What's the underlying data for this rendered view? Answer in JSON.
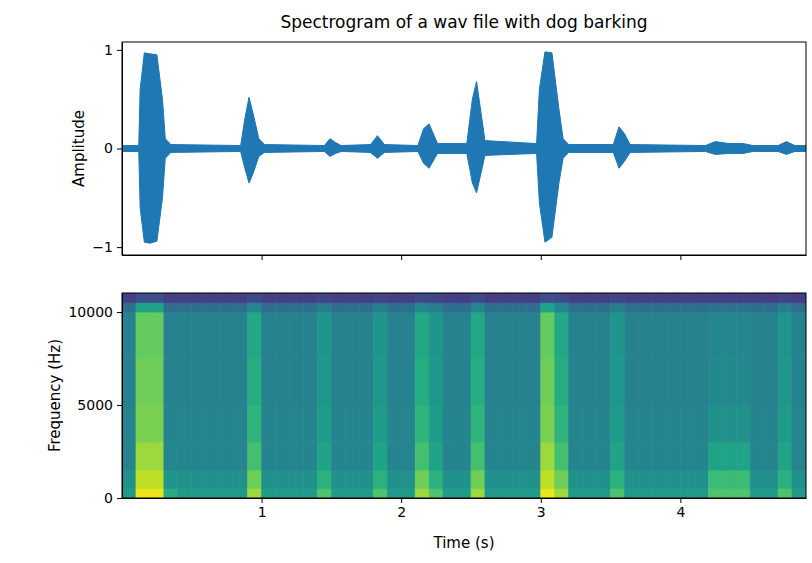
{
  "chart_data": [
    {
      "type": "area",
      "title": "Spectrogram of a wav file with dog barking",
      "y_label": "Amplitude",
      "x": [
        0,
        0.12,
        0.13,
        0.16,
        0.2,
        0.25,
        0.29,
        0.31,
        0.35,
        0.85,
        0.88,
        0.91,
        0.94,
        0.98,
        1.02,
        1.45,
        1.49,
        1.53,
        1.57,
        1.78,
        1.83,
        1.88,
        2.12,
        2.16,
        2.2,
        2.26,
        2.47,
        2.51,
        2.54,
        2.6,
        2.97,
        2.99,
        3.03,
        3.08,
        3.13,
        3.16,
        3.2,
        3.52,
        3.56,
        3.6,
        3.64,
        4.18,
        4.25,
        4.35,
        4.45,
        4.52,
        4.7,
        4.76,
        4.82,
        4.9
      ],
      "series": [
        {
          "color": "#1f77b4",
          "values": [
            0.03,
            0.03,
            0.6,
            0.97,
            0.96,
            0.95,
            0.5,
            0.1,
            0.04,
            0.03,
            0.3,
            0.52,
            0.35,
            0.1,
            0.04,
            0.03,
            0.1,
            0.06,
            0.03,
            0.04,
            0.13,
            0.04,
            0.03,
            0.2,
            0.25,
            0.05,
            0.05,
            0.5,
            0.68,
            0.08,
            0.05,
            0.6,
            0.98,
            0.97,
            0.4,
            0.1,
            0.04,
            0.04,
            0.22,
            0.15,
            0.04,
            0.03,
            0.07,
            0.05,
            0.05,
            0.03,
            0.03,
            0.07,
            0.03,
            0.03
          ]
        },
        {
          "color": "#1f77b4",
          "values": [
            -0.03,
            -0.03,
            -0.6,
            -0.95,
            -0.96,
            -0.94,
            -0.5,
            -0.1,
            -0.04,
            -0.03,
            -0.2,
            -0.35,
            -0.25,
            -0.08,
            -0.04,
            -0.03,
            -0.08,
            -0.05,
            -0.03,
            -0.04,
            -0.1,
            -0.04,
            -0.03,
            -0.15,
            -0.2,
            -0.05,
            -0.05,
            -0.35,
            -0.45,
            -0.07,
            -0.05,
            -0.55,
            -0.95,
            -0.9,
            -0.35,
            -0.1,
            -0.04,
            -0.04,
            -0.2,
            -0.13,
            -0.04,
            -0.03,
            -0.06,
            -0.05,
            -0.05,
            -0.03,
            -0.03,
            -0.06,
            -0.03,
            -0.03
          ]
        }
      ],
      "xlim": [
        0,
        4.9
      ],
      "ylim": [
        -1.08,
        1.08
      ],
      "xticks": [
        1,
        2,
        3,
        4
      ],
      "yticks": [
        {
          "value": -1,
          "label": "−1"
        },
        0,
        1
      ],
      "tick_labels": "y"
    },
    {
      "type": "heatmap",
      "x_label": "Time (s)",
      "y_label": "Frequency (Hz)",
      "color": "viridis",
      "x_edges": [
        0,
        0.1,
        0.2,
        0.3,
        0.4,
        0.5,
        0.6,
        0.7,
        0.8,
        0.9,
        1.0,
        1.1,
        1.2,
        1.3,
        1.4,
        1.5,
        1.6,
        1.7,
        1.8,
        1.9,
        2.0,
        2.1,
        2.2,
        2.3,
        2.4,
        2.5,
        2.6,
        2.7,
        2.8,
        2.9,
        3.0,
        3.1,
        3.2,
        3.3,
        3.4,
        3.5,
        3.6,
        3.7,
        3.8,
        3.9,
        4.0,
        4.1,
        4.2,
        4.3,
        4.4,
        4.5,
        4.6,
        4.7,
        4.8,
        4.9
      ],
      "y_edges": [
        0,
        500,
        1500,
        3000,
        5000,
        7500,
        10000,
        10500,
        11025
      ],
      "cells": [
        [
          0.55,
          0.97,
          0.97,
          0.62,
          0.55,
          0.55,
          0.55,
          0.55,
          0.55,
          0.85,
          0.55,
          0.55,
          0.55,
          0.55,
          0.72,
          0.55,
          0.55,
          0.55,
          0.72,
          0.55,
          0.55,
          0.85,
          0.72,
          0.55,
          0.55,
          0.85,
          0.55,
          0.55,
          0.55,
          0.55,
          0.97,
          0.85,
          0.55,
          0.55,
          0.55,
          0.72,
          0.55,
          0.55,
          0.55,
          0.55,
          0.55,
          0.55,
          0.72,
          0.72,
          0.72,
          0.55,
          0.55,
          0.72,
          0.55
        ],
        [
          0.5,
          0.9,
          0.9,
          0.52,
          0.5,
          0.5,
          0.5,
          0.5,
          0.5,
          0.78,
          0.5,
          0.5,
          0.5,
          0.5,
          0.64,
          0.5,
          0.5,
          0.5,
          0.64,
          0.5,
          0.5,
          0.78,
          0.64,
          0.5,
          0.5,
          0.78,
          0.5,
          0.5,
          0.5,
          0.5,
          0.9,
          0.78,
          0.5,
          0.5,
          0.5,
          0.64,
          0.5,
          0.5,
          0.5,
          0.5,
          0.5,
          0.5,
          0.68,
          0.68,
          0.68,
          0.5,
          0.5,
          0.64,
          0.5
        ],
        [
          0.45,
          0.85,
          0.85,
          0.46,
          0.45,
          0.45,
          0.45,
          0.45,
          0.45,
          0.7,
          0.45,
          0.45,
          0.45,
          0.45,
          0.58,
          0.45,
          0.45,
          0.45,
          0.58,
          0.45,
          0.45,
          0.7,
          0.58,
          0.45,
          0.45,
          0.7,
          0.45,
          0.45,
          0.45,
          0.45,
          0.85,
          0.7,
          0.45,
          0.45,
          0.45,
          0.58,
          0.45,
          0.45,
          0.45,
          0.45,
          0.45,
          0.45,
          0.58,
          0.58,
          0.58,
          0.45,
          0.45,
          0.58,
          0.45
        ],
        [
          0.45,
          0.8,
          0.8,
          0.45,
          0.45,
          0.45,
          0.45,
          0.45,
          0.45,
          0.65,
          0.45,
          0.45,
          0.45,
          0.45,
          0.55,
          0.45,
          0.45,
          0.45,
          0.55,
          0.45,
          0.45,
          0.65,
          0.55,
          0.45,
          0.45,
          0.65,
          0.45,
          0.45,
          0.45,
          0.45,
          0.8,
          0.65,
          0.45,
          0.45,
          0.45,
          0.55,
          0.45,
          0.45,
          0.45,
          0.45,
          0.45,
          0.45,
          0.5,
          0.5,
          0.5,
          0.45,
          0.45,
          0.55,
          0.45
        ],
        [
          0.44,
          0.78,
          0.78,
          0.44,
          0.44,
          0.44,
          0.44,
          0.44,
          0.44,
          0.62,
          0.44,
          0.44,
          0.44,
          0.44,
          0.53,
          0.44,
          0.44,
          0.44,
          0.53,
          0.44,
          0.44,
          0.62,
          0.53,
          0.44,
          0.44,
          0.62,
          0.44,
          0.44,
          0.44,
          0.44,
          0.78,
          0.62,
          0.44,
          0.44,
          0.44,
          0.53,
          0.44,
          0.44,
          0.44,
          0.44,
          0.44,
          0.44,
          0.47,
          0.47,
          0.47,
          0.44,
          0.44,
          0.53,
          0.44
        ],
        [
          0.44,
          0.76,
          0.76,
          0.44,
          0.44,
          0.44,
          0.44,
          0.44,
          0.44,
          0.6,
          0.44,
          0.44,
          0.44,
          0.44,
          0.52,
          0.44,
          0.44,
          0.44,
          0.52,
          0.44,
          0.44,
          0.6,
          0.52,
          0.44,
          0.44,
          0.6,
          0.44,
          0.44,
          0.44,
          0.44,
          0.76,
          0.6,
          0.44,
          0.44,
          0.44,
          0.52,
          0.44,
          0.44,
          0.44,
          0.44,
          0.44,
          0.44,
          0.46,
          0.46,
          0.46,
          0.44,
          0.44,
          0.52,
          0.44
        ],
        [
          0.36,
          0.58,
          0.58,
          0.36,
          0.36,
          0.36,
          0.36,
          0.36,
          0.36,
          0.46,
          0.36,
          0.36,
          0.36,
          0.36,
          0.42,
          0.36,
          0.36,
          0.36,
          0.42,
          0.36,
          0.36,
          0.46,
          0.42,
          0.36,
          0.36,
          0.46,
          0.36,
          0.36,
          0.36,
          0.36,
          0.58,
          0.46,
          0.36,
          0.36,
          0.36,
          0.42,
          0.36,
          0.36,
          0.36,
          0.36,
          0.36,
          0.36,
          0.38,
          0.38,
          0.38,
          0.36,
          0.36,
          0.42,
          0.36
        ],
        [
          0.18,
          0.24,
          0.24,
          0.18,
          0.18,
          0.18,
          0.18,
          0.18,
          0.18,
          0.22,
          0.18,
          0.18,
          0.18,
          0.18,
          0.2,
          0.18,
          0.18,
          0.18,
          0.2,
          0.18,
          0.18,
          0.22,
          0.2,
          0.18,
          0.18,
          0.22,
          0.18,
          0.18,
          0.18,
          0.18,
          0.24,
          0.22,
          0.18,
          0.18,
          0.18,
          0.2,
          0.18,
          0.18,
          0.18,
          0.18,
          0.18,
          0.18,
          0.18,
          0.18,
          0.18,
          0.18,
          0.18,
          0.2,
          0.18
        ]
      ],
      "zlim": [
        0,
        1
      ],
      "xlim": [
        0,
        4.9
      ],
      "ylim": [
        0,
        11025
      ],
      "xticks": [
        1,
        2,
        3,
        4
      ],
      "yticks": [
        0,
        5000,
        10000
      ]
    }
  ]
}
